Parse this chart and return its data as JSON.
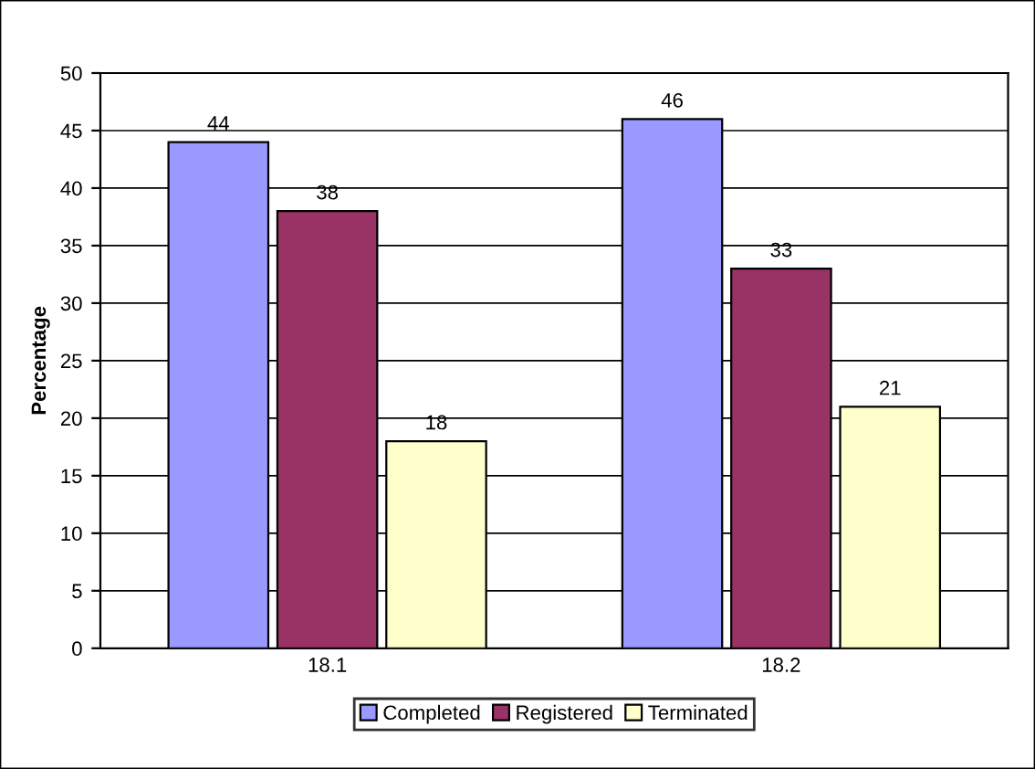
{
  "chart_data": {
    "type": "bar",
    "ylabel": "Percentage",
    "categories": [
      "18.1",
      "18.2"
    ],
    "series": [
      {
        "name": "Completed",
        "color": "#9999ff",
        "values": [
          44,
          46
        ]
      },
      {
        "name": "Registered",
        "color": "#993366",
        "values": [
          38,
          33
        ]
      },
      {
        "name": "Terminated",
        "color": "#ffffcc",
        "values": [
          18,
          21
        ]
      }
    ],
    "ylim": [
      0,
      50
    ],
    "yticks": [
      0,
      5,
      10,
      15,
      20,
      25,
      30,
      35,
      40,
      45,
      50
    ],
    "grid": "y",
    "legend": "bottom",
    "data_labels": true
  }
}
